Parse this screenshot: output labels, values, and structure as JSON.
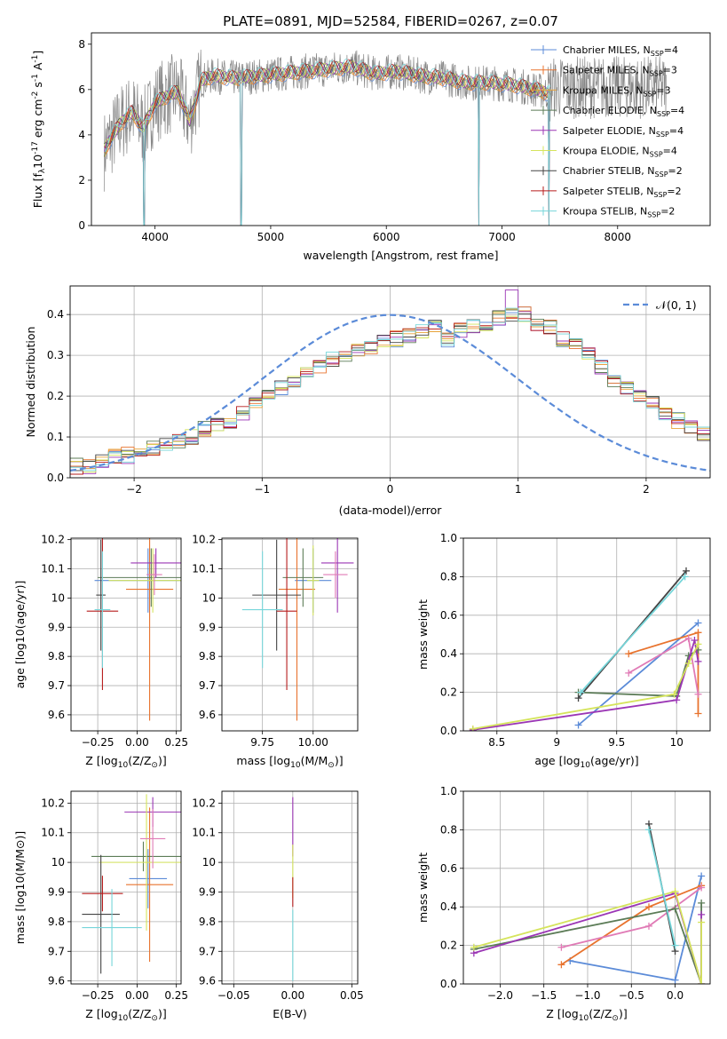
{
  "title": "PLATE=0891, MJD=52584, FIBERID=0267, z=0.07",
  "colors": {
    "chabrier_miles": "#5b8bd8",
    "salpeter_miles": "#e8732e",
    "kroupa_miles": "#e7a23a",
    "chabrier_elodie": "#5c7c57",
    "salpeter_elodie": "#9b36b5",
    "kroupa_elodie": "#d5e45c",
    "chabrier_stelib": "#444444",
    "salpeter_stelib": "#b61c1c",
    "kroupa_stelib": "#76d6da",
    "pink": "#e07bb6",
    "data_grey": "#888888",
    "gauss": "#5b8bd8",
    "grid": "#b0b0b0"
  },
  "chart_data": [
    {
      "id": "spectrum",
      "type": "line",
      "title": "PLATE=0891, MJD=52584, FIBERID=0267, z=0.07",
      "xlabel": "wavelength [Angstrom, rest frame]",
      "ylabel_main": "Flux [f",
      "ylabel_sub": "λ",
      "ylabel_rest": "10",
      "ylabel_sup1": "-17",
      "ylabel_tail": " erg cm",
      "ylabel_sup2": "-2",
      "ylabel_tail2": " s",
      "ylabel_sup3": "-1",
      "ylabel_tail3": " A",
      "ylabel_sup4": "-1",
      "ylabel_end": "]",
      "xlim": [
        3450,
        8800
      ],
      "ylim": [
        0,
        8.5
      ],
      "xticks": [
        4000,
        5000,
        6000,
        7000,
        8000
      ],
      "yticks": [
        0,
        2,
        4,
        6,
        8
      ],
      "grid": false,
      "legend_position": "top-right",
      "legend": [
        {
          "label": "Chabrier MILES, N",
          "sub": "SSP",
          "tail": "=4",
          "color": "#5b8bd8"
        },
        {
          "label": "Salpeter MILES, N",
          "sub": "SSP",
          "tail": "=3",
          "color": "#e8732e"
        },
        {
          "label": "Kroupa MILES, N",
          "sub": "SSP",
          "tail": "=3",
          "color": "#e7a23a"
        },
        {
          "label": "Chabrier ELODIE, N",
          "sub": "SSP",
          "tail": "=4",
          "color": "#5c7c57"
        },
        {
          "label": "Salpeter ELODIE, N",
          "sub": "SSP",
          "tail": "=4",
          "color": "#9b36b5"
        },
        {
          "label": "Kroupa ELODIE, N",
          "sub": "SSP",
          "tail": "=4",
          "color": "#d5e45c"
        },
        {
          "label": "Chabrier STELIB, N",
          "sub": "SSP",
          "tail": "=2",
          "color": "#444444"
        },
        {
          "label": "Salpeter STELIB, N",
          "sub": "SSP",
          "tail": "=2",
          "color": "#b61c1c"
        },
        {
          "label": "Kroupa STELIB, N",
          "sub": "SSP",
          "tail": "=2",
          "color": "#76d6da"
        }
      ],
      "continuum_x": [
        3560,
        3600,
        3700,
        3800,
        3900,
        4000,
        4100,
        4200,
        4300,
        4400,
        4500,
        4700,
        4900,
        5100,
        5300,
        5500,
        5700,
        5900,
        6100,
        6300,
        6500,
        6700,
        6900,
        7100,
        7300,
        7420
      ],
      "continuum_y": [
        3.3,
        3.7,
        4.5,
        5.0,
        4.3,
        5.4,
        5.7,
        5.9,
        4.6,
        6.4,
        6.6,
        6.5,
        6.6,
        6.7,
        6.8,
        6.9,
        7.0,
        6.7,
        6.8,
        6.6,
        6.5,
        6.3,
        6.3,
        6.2,
        6.0,
        5.8
      ],
      "dropouts_x": [
        3905,
        4745,
        6800,
        7405
      ]
    },
    {
      "id": "residuals",
      "type": "line",
      "xlabel": "(data-model)/error",
      "ylabel": "Normed distribution",
      "xlim": [
        -2.5,
        2.5
      ],
      "ylim": [
        0,
        0.47
      ],
      "xticks": [
        -2,
        -1,
        0,
        1,
        2
      ],
      "xtick_labels": [
        "−2",
        "−1",
        "0",
        "1",
        "2"
      ],
      "yticks": [
        0.0,
        0.1,
        0.2,
        0.3,
        0.4
      ],
      "ytick_labels": [
        "0.0",
        "0.1",
        "0.2",
        "0.3",
        "0.4"
      ],
      "grid": true,
      "legend": [
        {
          "label": "𝒩(0, 1)",
          "color": "#5b8bd8"
        }
      ],
      "gauss_mean": 0,
      "gauss_sigma": 1,
      "bin_start": -2.6,
      "bin_width": 0.1,
      "histogram_base": [
        0.025,
        0.028,
        0.03,
        0.045,
        0.05,
        0.055,
        0.06,
        0.07,
        0.08,
        0.09,
        0.1,
        0.12,
        0.13,
        0.14,
        0.16,
        0.18,
        0.2,
        0.22,
        0.24,
        0.26,
        0.27,
        0.29,
        0.3,
        0.31,
        0.32,
        0.33,
        0.34,
        0.35,
        0.36,
        0.37,
        0.34,
        0.36,
        0.37,
        0.38,
        0.39,
        0.4,
        0.4,
        0.38,
        0.37,
        0.34,
        0.33,
        0.3,
        0.27,
        0.24,
        0.22,
        0.2,
        0.18,
        0.16,
        0.14,
        0.12,
        0.11,
        0.09,
        0.08,
        0.07,
        0.06,
        0.05,
        0.045,
        0.035,
        0.03,
        0.028,
        0.025,
        0.025
      ]
    },
    {
      "id": "age_vs_Z",
      "type": "scatter",
      "xlabel_pre": "Z [log",
      "xlabel_sub": "10",
      "xlabel_post": "(Z/Z",
      "xlabel_sub2": "⊙",
      "xlabel_end": ")]",
      "ylabel": "age  [log10(age/yr)]",
      "xlim": [
        -0.42,
        0.28
      ],
      "ylim": [
        9.545,
        10.205
      ],
      "xticks": [
        -0.25,
        0.0,
        0.25
      ],
      "xtick_labels": [
        "−0.25",
        "0.00",
        "0.25"
      ],
      "yticks": [
        9.6,
        9.7,
        9.8,
        9.9,
        10.0,
        10.1,
        10.2
      ],
      "grid": true,
      "points": [
        {
          "x": 0.07,
          "y": 10.06,
          "xerr": 0.34,
          "yerr": 0.11,
          "color": "#5b8bd8"
        },
        {
          "x": 0.08,
          "y": 10.03,
          "xerr": 0.15,
          "yerr": 0.45,
          "color": "#e8732e"
        },
        {
          "x": 0.09,
          "y": 10.07,
          "xerr": 0.34,
          "yerr": 0.1,
          "color": "#5c7c57"
        },
        {
          "x": 0.12,
          "y": 10.12,
          "xerr": 0.16,
          "yerr": 0.05,
          "color": "#9b36b5"
        },
        {
          "x": 0.1,
          "y": 10.06,
          "xerr": 0.28,
          "yerr": 0.11,
          "color": "#d5e45c"
        },
        {
          "x": -0.23,
          "y": 10.01,
          "xerr": 0.03,
          "yerr": 0.19,
          "color": "#444444"
        },
        {
          "x": -0.22,
          "y": 9.955,
          "xerr": 0.1,
          "yerr": 0.27,
          "color": "#b61c1c"
        },
        {
          "x": -0.22,
          "y": 9.96,
          "xerr": 0.05,
          "yerr": 0.2,
          "color": "#76d6da"
        },
        {
          "x": 0.11,
          "y": 10.08,
          "xerr": 0.05,
          "yerr": 0.07,
          "color": "#e07bb6"
        }
      ]
    },
    {
      "id": "age_vs_mass",
      "type": "scatter",
      "xlabel_pre": "mass [log",
      "xlabel_sub": "10",
      "xlabel_post": "(M/M",
      "xlabel_sub2": "⊙",
      "xlabel_end": ")]",
      "xlim": [
        9.55,
        10.22
      ],
      "ylim": [
        9.545,
        10.205
      ],
      "xticks": [
        9.75,
        10.0
      ],
      "xtick_labels": [
        "9.75",
        "10.00"
      ],
      "yticks": [
        9.6,
        9.7,
        9.8,
        9.9,
        10.0,
        10.1,
        10.2
      ],
      "grid": true,
      "points": [
        {
          "x": 10.0,
          "y": 10.06,
          "xerr": 0.09,
          "yerr": 0.11,
          "color": "#5b8bd8"
        },
        {
          "x": 9.92,
          "y": 10.03,
          "xerr": 0.09,
          "yerr": 0.45,
          "color": "#e8732e"
        },
        {
          "x": 9.95,
          "y": 10.07,
          "xerr": 0.1,
          "yerr": 0.1,
          "color": "#5c7c57"
        },
        {
          "x": 10.12,
          "y": 10.12,
          "xerr": 0.08,
          "yerr": 0.17,
          "color": "#9b36b5"
        },
        {
          "x": 10.0,
          "y": 10.06,
          "xerr": 0.03,
          "yerr": 0.12,
          "color": "#d5e45c"
        },
        {
          "x": 9.82,
          "y": 10.01,
          "xerr": 0.12,
          "yerr": 0.19,
          "color": "#444444"
        },
        {
          "x": 9.87,
          "y": 9.955,
          "xerr": 0.05,
          "yerr": 0.27,
          "color": "#b61c1c"
        },
        {
          "x": 9.75,
          "y": 9.96,
          "xerr": 0.1,
          "yerr": 0.2,
          "color": "#76d6da"
        },
        {
          "x": 10.11,
          "y": 10.08,
          "xerr": 0.06,
          "yerr": 0.08,
          "color": "#e07bb6"
        }
      ]
    },
    {
      "id": "massweight_vs_age",
      "type": "line",
      "xlabel_pre": "age  [log",
      "xlabel_sub": "10",
      "xlabel_post": "(age/yr)]",
      "ylabel": "mass weight",
      "xlim": [
        8.22,
        10.28
      ],
      "ylim": [
        0,
        1.0
      ],
      "xticks": [
        8.5,
        9.0,
        9.5,
        10.0
      ],
      "yticks": [
        0.0,
        0.2,
        0.4,
        0.6,
        0.8,
        1.0
      ],
      "grid": true,
      "series": [
        {
          "color": "#5b8bd8",
          "x": [
            9.18,
            10.18
          ],
          "y": [
            0.03,
            0.56
          ]
        },
        {
          "color": "#e8732e",
          "x": [
            9.6,
            10.18,
            10.18
          ],
          "y": [
            0.4,
            0.51,
            0.09
          ]
        },
        {
          "color": "#e07bb6",
          "x": [
            9.6,
            10.1,
            10.18
          ],
          "y": [
            0.3,
            0.48,
            0.19
          ]
        },
        {
          "color": "#5c7c57",
          "x": [
            9.18,
            10.0,
            10.1,
            10.18
          ],
          "y": [
            0.2,
            0.18,
            0.39,
            0.42
          ]
        },
        {
          "color": "#9b36b5",
          "x": [
            8.3,
            10.0,
            10.15,
            10.18
          ],
          "y": [
            0.005,
            0.16,
            0.47,
            0.36
          ]
        },
        {
          "color": "#d5e45c",
          "x": [
            8.3,
            9.98,
            10.1,
            10.18
          ],
          "y": [
            0.01,
            0.19,
            0.35,
            0.45
          ]
        },
        {
          "color": "#444444",
          "x": [
            9.18,
            10.08
          ],
          "y": [
            0.17,
            0.83
          ]
        },
        {
          "color": "#76d6da",
          "x": [
            9.2,
            10.07
          ],
          "y": [
            0.2,
            0.8
          ]
        }
      ]
    },
    {
      "id": "mass_vs_Z",
      "type": "scatter",
      "xlabel_pre": "Z [log",
      "xlabel_sub": "10",
      "xlabel_post": "(Z/Z",
      "xlabel_sub2": "⊙",
      "xlabel_end": ")]",
      "ylabel": "mass [log10(M/M⊙)]",
      "xlim": [
        -0.42,
        0.28
      ],
      "ylim": [
        9.59,
        10.24
      ],
      "xticks": [
        -0.25,
        0.0,
        0.25
      ],
      "xtick_labels": [
        "−0.25",
        "0.00",
        "0.25"
      ],
      "yticks": [
        9.6,
        9.7,
        9.8,
        9.9,
        10.0,
        10.1,
        10.2
      ],
      "grid": true,
      "points": [
        {
          "x": 0.07,
          "y": 9.945,
          "xerr": 0.12,
          "yerr": 0.1,
          "color": "#5b8bd8"
        },
        {
          "x": 0.08,
          "y": 9.925,
          "xerr": 0.15,
          "yerr": 0.26,
          "color": "#e8732e"
        },
        {
          "x": 0.04,
          "y": 10.02,
          "xerr": 0.33,
          "yerr": 0.05,
          "color": "#5c7c57"
        },
        {
          "x": 0.1,
          "y": 10.17,
          "xerr": 0.18,
          "yerr": 0.05,
          "color": "#9b36b5"
        },
        {
          "x": 0.06,
          "y": 10.0,
          "xerr": 0.3,
          "yerr": 0.23,
          "color": "#d5e45c"
        },
        {
          "x": -0.23,
          "y": 9.825,
          "xerr": 0.12,
          "yerr": 0.2,
          "color": "#444444"
        },
        {
          "x": -0.22,
          "y": 9.895,
          "xerr": 0.13,
          "yerr": 0.06,
          "color": "#b61c1c"
        },
        {
          "x": -0.16,
          "y": 9.78,
          "xerr": 0.19,
          "yerr": 0.13,
          "color": "#76d6da"
        },
        {
          "x": 0.1,
          "y": 10.08,
          "xerr": 0.08,
          "yerr": 0.1,
          "color": "#e07bb6"
        }
      ]
    },
    {
      "id": "mass_vs_EBV",
      "type": "scatter",
      "xlabel": "E(B-V)",
      "xlim": [
        -0.06,
        0.055
      ],
      "ylim": [
        9.59,
        10.24
      ],
      "xticks": [
        -0.05,
        0.0,
        0.05
      ],
      "xtick_labels": [
        "−0.05",
        "0.00",
        "0.05"
      ],
      "yticks": [
        9.6,
        9.7,
        9.8,
        9.9,
        10.0,
        10.1,
        10.2
      ],
      "grid": true,
      "points": [
        {
          "x": 0.0,
          "y": 10.12,
          "xerr": 0,
          "yerr": 0.1,
          "color": "#9b36b5"
        },
        {
          "x": 0.0,
          "y": 9.97,
          "xerr": 0,
          "yerr": 0.09,
          "color": "#d5e45c"
        },
        {
          "x": 0.0,
          "y": 9.9,
          "xerr": 0,
          "yerr": 0.05,
          "color": "#b61c1c"
        },
        {
          "x": 0.0,
          "y": 9.72,
          "xerr": 0,
          "yerr": 0.12,
          "color": "#76d6da"
        }
      ]
    },
    {
      "id": "massweight_vs_Z",
      "type": "line",
      "xlabel_pre": "Z [log",
      "xlabel_sub": "10",
      "xlabel_post": "(Z/Z",
      "xlabel_sub2": "⊙",
      "xlabel_end": ")]",
      "ylabel": "mass weight",
      "xlim": [
        -2.42,
        0.4
      ],
      "ylim": [
        0,
        1.0
      ],
      "xticks": [
        -2.0,
        -1.5,
        -1.0,
        -0.5,
        0.0
      ],
      "xtick_labels": [
        "−2.0",
        "−1.5",
        "−1.0",
        "−0.5",
        "0.0"
      ],
      "yticks": [
        0.0,
        0.2,
        0.4,
        0.6,
        0.8,
        1.0
      ],
      "grid": true,
      "series": [
        {
          "color": "#5b8bd8",
          "x": [
            -1.2,
            0.0,
            0.3
          ],
          "y": [
            0.12,
            0.02,
            0.56
          ]
        },
        {
          "color": "#e8732e",
          "x": [
            -1.3,
            -0.3,
            0.3
          ],
          "y": [
            0.1,
            0.4,
            0.51
          ]
        },
        {
          "color": "#e07bb6",
          "x": [
            -1.3,
            -0.3,
            0.3
          ],
          "y": [
            0.19,
            0.3,
            0.5
          ]
        },
        {
          "color": "#5c7c57",
          "x": [
            -2.3,
            0.0,
            0.3,
            0.3
          ],
          "y": [
            0.18,
            0.39,
            0.0,
            0.42
          ]
        },
        {
          "color": "#9b36b5",
          "x": [
            -2.3,
            0.0,
            0.3,
            0.3
          ],
          "y": [
            0.16,
            0.47,
            0.0,
            0.36
          ]
        },
        {
          "color": "#d5e45c",
          "x": [
            -2.3,
            0.0,
            0.3,
            0.3
          ],
          "y": [
            0.19,
            0.48,
            0.0,
            0.32
          ]
        },
        {
          "color": "#444444",
          "x": [
            -0.3,
            0.0
          ],
          "y": [
            0.83,
            0.17
          ]
        },
        {
          "color": "#76d6da",
          "x": [
            -0.3,
            0.0
          ],
          "y": [
            0.8,
            0.2
          ]
        }
      ]
    }
  ]
}
